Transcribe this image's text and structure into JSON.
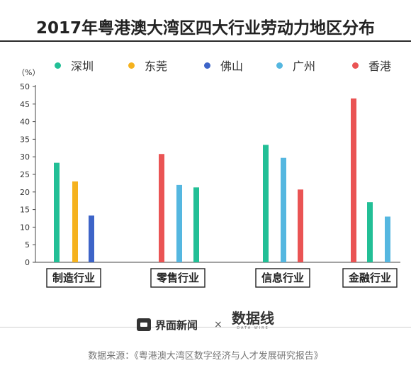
{
  "title": "2017年粤港澳大湾区四大行业劳动力地区分布",
  "colors": {
    "深圳": "#22bf96",
    "东莞": "#f5b21e",
    "佛山": "#3d64c8",
    "广州": "#55b7e0",
    "香港": "#ea5454"
  },
  "chart_data": {
    "type": "bar",
    "title": "2017年粤港澳大湾区四大行业劳动力地区分布",
    "ylabel": "（%）",
    "ylim": [
      0,
      50
    ],
    "yticks": [
      0,
      5,
      10,
      15,
      20,
      25,
      30,
      35,
      40,
      45,
      50
    ],
    "legend": [
      "深圳",
      "东莞",
      "佛山",
      "广州",
      "香港"
    ],
    "legend_position": "top",
    "grid": false,
    "categories": [
      "制造行业",
      "零售行业",
      "信息行业",
      "金融行业"
    ],
    "groups": [
      {
        "category": "制造行业",
        "bars": [
          {
            "region": "深圳",
            "value": 28.3
          },
          {
            "region": "东莞",
            "value": 23.0
          },
          {
            "region": "佛山",
            "value": 13.3
          }
        ]
      },
      {
        "category": "零售行业",
        "bars": [
          {
            "region": "香港",
            "value": 30.8
          },
          {
            "region": "广州",
            "value": 22.0
          },
          {
            "region": "深圳",
            "value": 21.3
          }
        ]
      },
      {
        "category": "信息行业",
        "bars": [
          {
            "region": "深圳",
            "value": 33.4
          },
          {
            "region": "广州",
            "value": 29.7
          },
          {
            "region": "香港",
            "value": 20.7
          }
        ]
      },
      {
        "category": "金融行业",
        "bars": [
          {
            "region": "香港",
            "value": 46.6
          },
          {
            "region": "深圳",
            "value": 17.1
          },
          {
            "region": "广州",
            "value": 13.0
          }
        ]
      }
    ]
  },
  "footer": {
    "brand1": "界面新闻",
    "times": "×",
    "brand2": "数据线",
    "brand2_sub": "DATA WIRE",
    "source": "数据来源：《粤港澳大湾区数字经济与人才发展研究报告》"
  }
}
